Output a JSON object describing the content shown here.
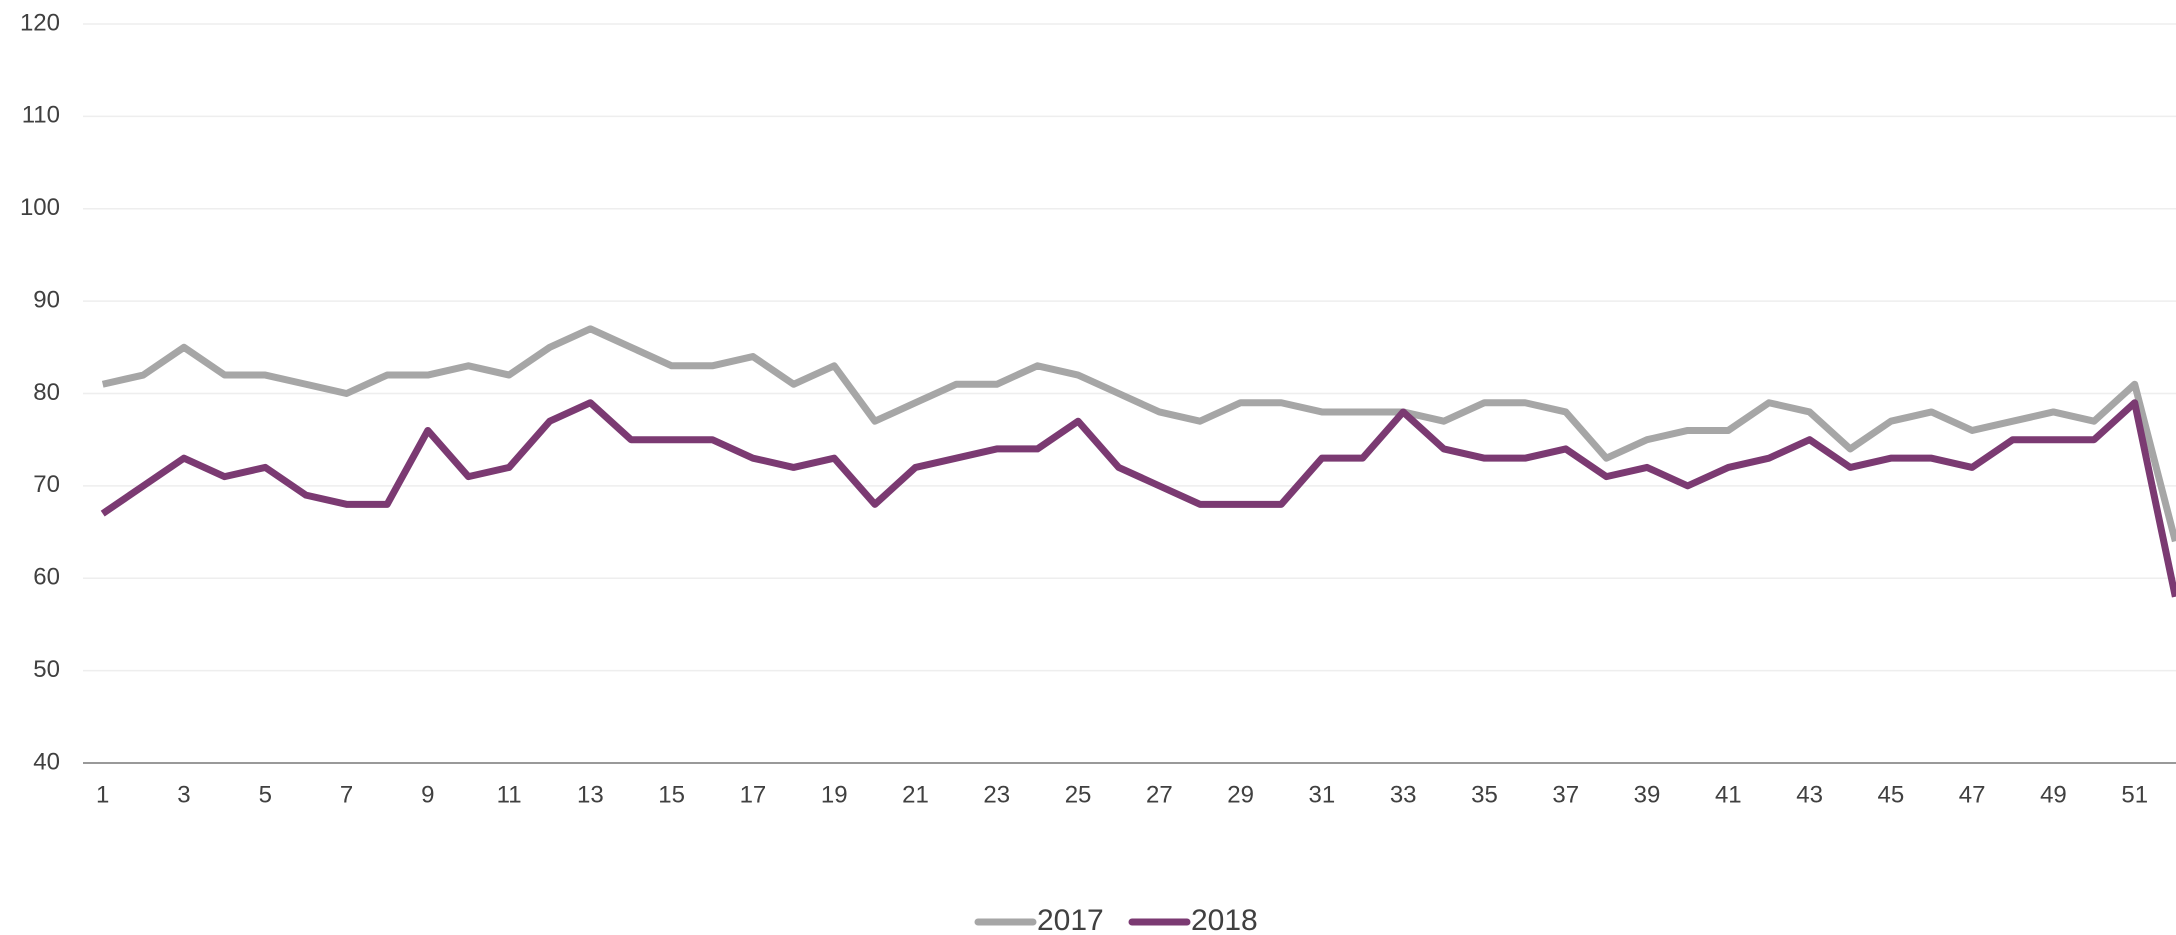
{
  "chart_data": {
    "type": "line",
    "x": [
      1,
      2,
      3,
      4,
      5,
      6,
      7,
      8,
      9,
      10,
      11,
      12,
      13,
      14,
      15,
      16,
      17,
      18,
      19,
      20,
      21,
      22,
      23,
      24,
      25,
      26,
      27,
      28,
      29,
      30,
      31,
      32,
      33,
      34,
      35,
      36,
      37,
      38,
      39,
      40,
      41,
      42,
      43,
      44,
      45,
      46,
      47,
      48,
      49,
      50,
      51,
      52
    ],
    "series": [
      {
        "name": "2017",
        "color": "#a6a6a6",
        "values": [
          81,
          82,
          85,
          82,
          82,
          81,
          80,
          82,
          82,
          83,
          82,
          85,
          87,
          85,
          83,
          83,
          84,
          81,
          83,
          77,
          79,
          81,
          81,
          83,
          82,
          80,
          78,
          77,
          79,
          79,
          78,
          78,
          78,
          77,
          79,
          79,
          78,
          73,
          75,
          76,
          76,
          79,
          78,
          74,
          77,
          78,
          76,
          77,
          78,
          77,
          81,
          64
        ]
      },
      {
        "name": "2018",
        "color": "#7b3a72",
        "values": [
          67,
          70,
          73,
          71,
          72,
          69,
          68,
          68,
          76,
          71,
          72,
          77,
          79,
          75,
          75,
          75,
          73,
          72,
          73,
          68,
          72,
          73,
          74,
          74,
          77,
          72,
          70,
          68,
          68,
          68,
          73,
          73,
          78,
          74,
          73,
          73,
          74,
          71,
          72,
          70,
          72,
          73,
          75,
          72,
          73,
          73,
          72,
          75,
          75,
          75,
          79,
          58
        ]
      }
    ],
    "xlim": [
      0.65,
      52.5
    ],
    "xticks": [
      1,
      3,
      5,
      7,
      9,
      11,
      13,
      15,
      17,
      19,
      21,
      23,
      25,
      27,
      29,
      31,
      33,
      35,
      37,
      39,
      41,
      43,
      45,
      47,
      49,
      51
    ],
    "ylim": [
      40,
      120
    ],
    "yticks": [
      40,
      50,
      60,
      70,
      80,
      90,
      100,
      110,
      120
    ],
    "grid": true,
    "legend": "bottom"
  }
}
